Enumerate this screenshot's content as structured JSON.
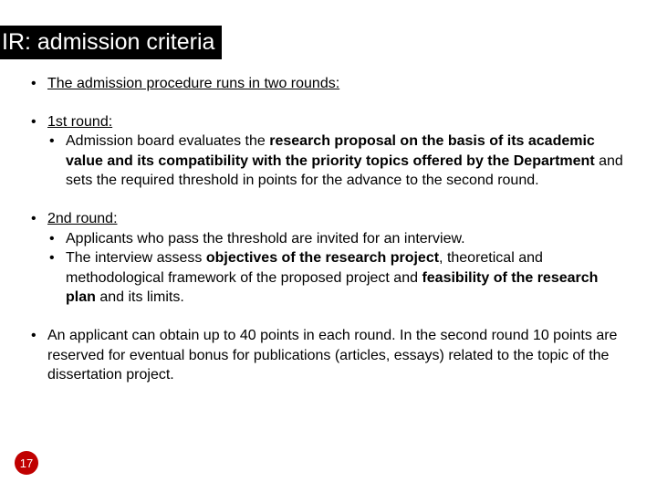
{
  "title": "IR: admission criteria",
  "intro": "The admission procedure runs in two rounds:",
  "round1_label": "1st round:",
  "round1_text_a": "Admission board evaluates the ",
  "round1_text_b": "research proposal on the basis of its academic value and its compatibility with the priority topics offered by the Department",
  "round1_text_c": " and sets the required threshold in points for the advance to the second round.",
  "round2_label": "2nd round:",
  "round2_item1": "Applicants who pass the threshold are invited for an interview.",
  "round2_item2_a": "The interview assess ",
  "round2_item2_b": "objectives of the research project",
  "round2_item2_c": ", theoretical and methodological framework of the proposed project and ",
  "round2_item2_d": "feasibility of the research plan",
  "round2_item2_e": " and its limits.",
  "closing": "An applicant can obtain up to 40 points in each round. In the second round 10 points are reserved for eventual bonus for publications (articles, essays) related to the topic of the dissertation project.",
  "page_number": "17",
  "colors": {
    "title_bg": "#000000",
    "title_fg": "#ffffff",
    "badge_bg": "#c00000"
  }
}
